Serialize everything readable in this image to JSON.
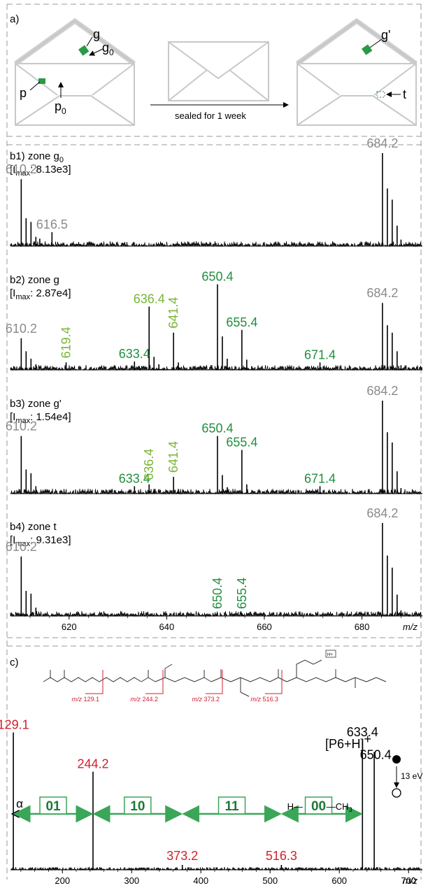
{
  "colors": {
    "grey": "#8a8a8a",
    "green_dark": "#1f8f3c",
    "green_light": "#7ab536",
    "red": "#d0202c",
    "arrow_green": "#3aa658",
    "black": "#000000"
  },
  "panel_a": {
    "label": "a)",
    "envelope_left": {
      "g": "g",
      "g0": "g",
      "g0_sub": "0",
      "p": "p",
      "p0": "p",
      "p0_sub": "0"
    },
    "arrow_text": "sealed for 1 week",
    "envelope_right": {
      "g_prime": "g'",
      "t": "t"
    }
  },
  "chart_data": [
    {
      "type": "line",
      "panel": "b1",
      "title": "b1) zone g",
      "title_sub": "0",
      "imax_prefix": "[I",
      "imax_sub": "max",
      "imax_suffix": ": 8.13e3]",
      "xlim": [
        608,
        692
      ],
      "peaks": [
        {
          "x": 610.2,
          "y": 0.72
        },
        {
          "x": 611.2,
          "y": 0.3
        },
        {
          "x": 612.2,
          "y": 0.26
        },
        {
          "x": 613.2,
          "y": 0.1
        },
        {
          "x": 614.0,
          "y": 0.08
        },
        {
          "x": 616.5,
          "y": 0.15
        },
        {
          "x": 684.2,
          "y": 1.0
        },
        {
          "x": 685.2,
          "y": 0.62
        },
        {
          "x": 686.2,
          "y": 0.5
        },
        {
          "x": 687.2,
          "y": 0.22
        },
        {
          "x": 688.0,
          "y": 0.07
        }
      ],
      "labels": [
        {
          "text": "610.2",
          "x": 610.2,
          "color": "grey",
          "rot": 0
        },
        {
          "text": "616.5",
          "x": 616.5,
          "color": "grey",
          "rot": 0
        },
        {
          "text": "684.2",
          "x": 684.2,
          "color": "grey",
          "rot": 0
        }
      ]
    },
    {
      "type": "line",
      "panel": "b2",
      "title": "b2) zone g",
      "imax_prefix": "[I",
      "imax_sub": "max",
      "imax_suffix": ": 2.87e4]",
      "xlim": [
        608,
        692
      ],
      "peaks": [
        {
          "x": 610.2,
          "y": 0.34
        },
        {
          "x": 611.2,
          "y": 0.2
        },
        {
          "x": 612.2,
          "y": 0.12
        },
        {
          "x": 613.2,
          "y": 0.06
        },
        {
          "x": 619.4,
          "y": 0.08
        },
        {
          "x": 633.4,
          "y": 0.09
        },
        {
          "x": 634.4,
          "y": 0.04
        },
        {
          "x": 636.4,
          "y": 0.68
        },
        {
          "x": 637.4,
          "y": 0.14
        },
        {
          "x": 638.4,
          "y": 0.06
        },
        {
          "x": 641.4,
          "y": 0.4
        },
        {
          "x": 642.4,
          "y": 0.08
        },
        {
          "x": 650.4,
          "y": 0.92
        },
        {
          "x": 651.4,
          "y": 0.36
        },
        {
          "x": 652.4,
          "y": 0.12
        },
        {
          "x": 655.4,
          "y": 0.43
        },
        {
          "x": 656.4,
          "y": 0.11
        },
        {
          "x": 657.4,
          "y": 0.04
        },
        {
          "x": 671.4,
          "y": 0.08
        },
        {
          "x": 684.2,
          "y": 0.72
        },
        {
          "x": 685.2,
          "y": 0.48
        },
        {
          "x": 686.2,
          "y": 0.4
        },
        {
          "x": 687.2,
          "y": 0.2
        },
        {
          "x": 688.0,
          "y": 0.05
        }
      ],
      "labels": [
        {
          "text": "610.2",
          "x": 610.2,
          "color": "grey",
          "rot": 0
        },
        {
          "text": "619.4",
          "x": 619.4,
          "color": "green_light",
          "rot": -90
        },
        {
          "text": "633.4",
          "x": 633.4,
          "color": "green_dark",
          "rot": 0
        },
        {
          "text": "636.4",
          "x": 636.4,
          "color": "green_light",
          "rot": 0
        },
        {
          "text": "641.4",
          "x": 641.4,
          "color": "green_light",
          "rot": -90
        },
        {
          "text": "650.4",
          "x": 650.4,
          "color": "green_dark",
          "rot": 0
        },
        {
          "text": "655.4",
          "x": 655.4,
          "color": "green_dark",
          "rot": 0
        },
        {
          "text": "671.4",
          "x": 671.4,
          "color": "green_dark",
          "rot": 0
        },
        {
          "text": "684.2",
          "x": 684.2,
          "color": "grey",
          "rot": 0
        }
      ]
    },
    {
      "type": "line",
      "panel": "b3",
      "title": "b3) zone g'",
      "imax_prefix": "[I",
      "imax_sub": "max",
      "imax_suffix": ": 1.54e4]",
      "xlim": [
        608,
        692
      ],
      "peaks": [
        {
          "x": 610.2,
          "y": 0.62
        },
        {
          "x": 611.2,
          "y": 0.26
        },
        {
          "x": 612.2,
          "y": 0.22
        },
        {
          "x": 613.2,
          "y": 0.08
        },
        {
          "x": 633.4,
          "y": 0.08
        },
        {
          "x": 636.4,
          "y": 0.1
        },
        {
          "x": 637.4,
          "y": 0.05
        },
        {
          "x": 641.4,
          "y": 0.18
        },
        {
          "x": 642.4,
          "y": 0.05
        },
        {
          "x": 650.4,
          "y": 0.62
        },
        {
          "x": 651.4,
          "y": 0.2
        },
        {
          "x": 652.4,
          "y": 0.07
        },
        {
          "x": 655.4,
          "y": 0.47
        },
        {
          "x": 656.4,
          "y": 0.1
        },
        {
          "x": 671.4,
          "y": 0.08
        },
        {
          "x": 684.2,
          "y": 1.0
        },
        {
          "x": 685.2,
          "y": 0.66
        },
        {
          "x": 686.2,
          "y": 0.55
        },
        {
          "x": 687.2,
          "y": 0.24
        },
        {
          "x": 688.0,
          "y": 0.06
        }
      ],
      "labels": [
        {
          "text": "610.2",
          "x": 610.2,
          "color": "grey",
          "rot": 0
        },
        {
          "text": "633.4",
          "x": 633.4,
          "color": "green_dark",
          "rot": 0
        },
        {
          "text": "636.4",
          "x": 636.4,
          "color": "green_light",
          "rot": -90
        },
        {
          "text": "641.4",
          "x": 641.4,
          "color": "green_light",
          "rot": -90
        },
        {
          "text": "650.4",
          "x": 650.4,
          "color": "green_dark",
          "rot": 0
        },
        {
          "text": "655.4",
          "x": 655.4,
          "color": "green_dark",
          "rot": 0
        },
        {
          "text": "671.4",
          "x": 671.4,
          "color": "green_dark",
          "rot": 0
        },
        {
          "text": "684.2",
          "x": 684.2,
          "color": "grey",
          "rot": 0
        }
      ]
    },
    {
      "type": "line",
      "panel": "b4",
      "title": "b4) zone t",
      "imax_prefix": "[I",
      "imax_sub": "max",
      "imax_suffix": ": 9.31e3]",
      "xlim": [
        608,
        692
      ],
      "xticks": [
        620,
        640,
        660,
        680
      ],
      "xlabel": "m/z",
      "peaks": [
        {
          "x": 610.2,
          "y": 0.64
        },
        {
          "x": 611.2,
          "y": 0.27
        },
        {
          "x": 612.2,
          "y": 0.24
        },
        {
          "x": 613.2,
          "y": 0.09
        },
        {
          "x": 650.4,
          "y": 0.03
        },
        {
          "x": 655.4,
          "y": 0.03
        },
        {
          "x": 684.2,
          "y": 1.0
        },
        {
          "x": 685.2,
          "y": 0.65
        },
        {
          "x": 686.2,
          "y": 0.52
        },
        {
          "x": 687.2,
          "y": 0.23
        },
        {
          "x": 688.0,
          "y": 0.06
        }
      ],
      "labels": [
        {
          "text": "610.2",
          "x": 610.2,
          "color": "grey",
          "rot": 0
        },
        {
          "text": "650.4",
          "x": 650.4,
          "color": "green_dark",
          "rot": -90
        },
        {
          "text": "655.4",
          "x": 655.4,
          "color": "green_dark",
          "rot": -90
        },
        {
          "text": "684.2",
          "x": 684.2,
          "color": "grey",
          "rot": 0
        }
      ]
    },
    {
      "type": "line",
      "panel": "c",
      "title": "c)",
      "xlim": [
        125,
        720
      ],
      "xticks": [
        200,
        300,
        400,
        500,
        600,
        700
      ],
      "xlabel": "m/z",
      "peaks": [
        {
          "x": 129.1,
          "y": 0.84
        },
        {
          "x": 244.2,
          "y": 0.6
        },
        {
          "x": 373.2,
          "y": 0.03
        },
        {
          "x": 516.3,
          "y": 0.03
        },
        {
          "x": 633.4,
          "y": 0.79
        },
        {
          "x": 650.4,
          "y": 0.72
        }
      ],
      "labels": [
        {
          "text": "129.1",
          "x": 129.1,
          "color": "red",
          "rot": 0
        },
        {
          "text": "244.2",
          "x": 244.2,
          "color": "red",
          "rot": 0
        },
        {
          "text": "373.2",
          "x": 373.2,
          "color": "red",
          "rot": 0
        },
        {
          "text": "516.3",
          "x": 516.3,
          "color": "red",
          "rot": 0
        },
        {
          "text": "633.4",
          "x": 633.4,
          "color": "black",
          "rot": 0
        },
        {
          "text": "650.4",
          "x": 650.4,
          "color": "black",
          "rot": 0
        }
      ],
      "ion_label": "[P6+H]",
      "ion_charge": "+",
      "energy": "13 eV",
      "alpha": "α",
      "segments": [
        {
          "text": "01",
          "from": 129.1,
          "to": 244.2
        },
        {
          "text": "10",
          "from": 244.2,
          "to": 373.2
        },
        {
          "text": "11",
          "from": 373.2,
          "to": 516.3
        },
        {
          "text": "00",
          "from": 516.3,
          "to": 633.4
        }
      ],
      "end_groups": {
        "left": "H",
        "right": "CH",
        "right_sub": "3"
      },
      "structure_mz": [
        {
          "prefix": "m/z",
          "value": "129.1"
        },
        {
          "prefix": "m/z",
          "value": "244.2"
        },
        {
          "prefix": "m/z",
          "value": "373.2"
        },
        {
          "prefix": "m/z",
          "value": "516.3"
        }
      ],
      "proton_tag": "H+"
    }
  ]
}
